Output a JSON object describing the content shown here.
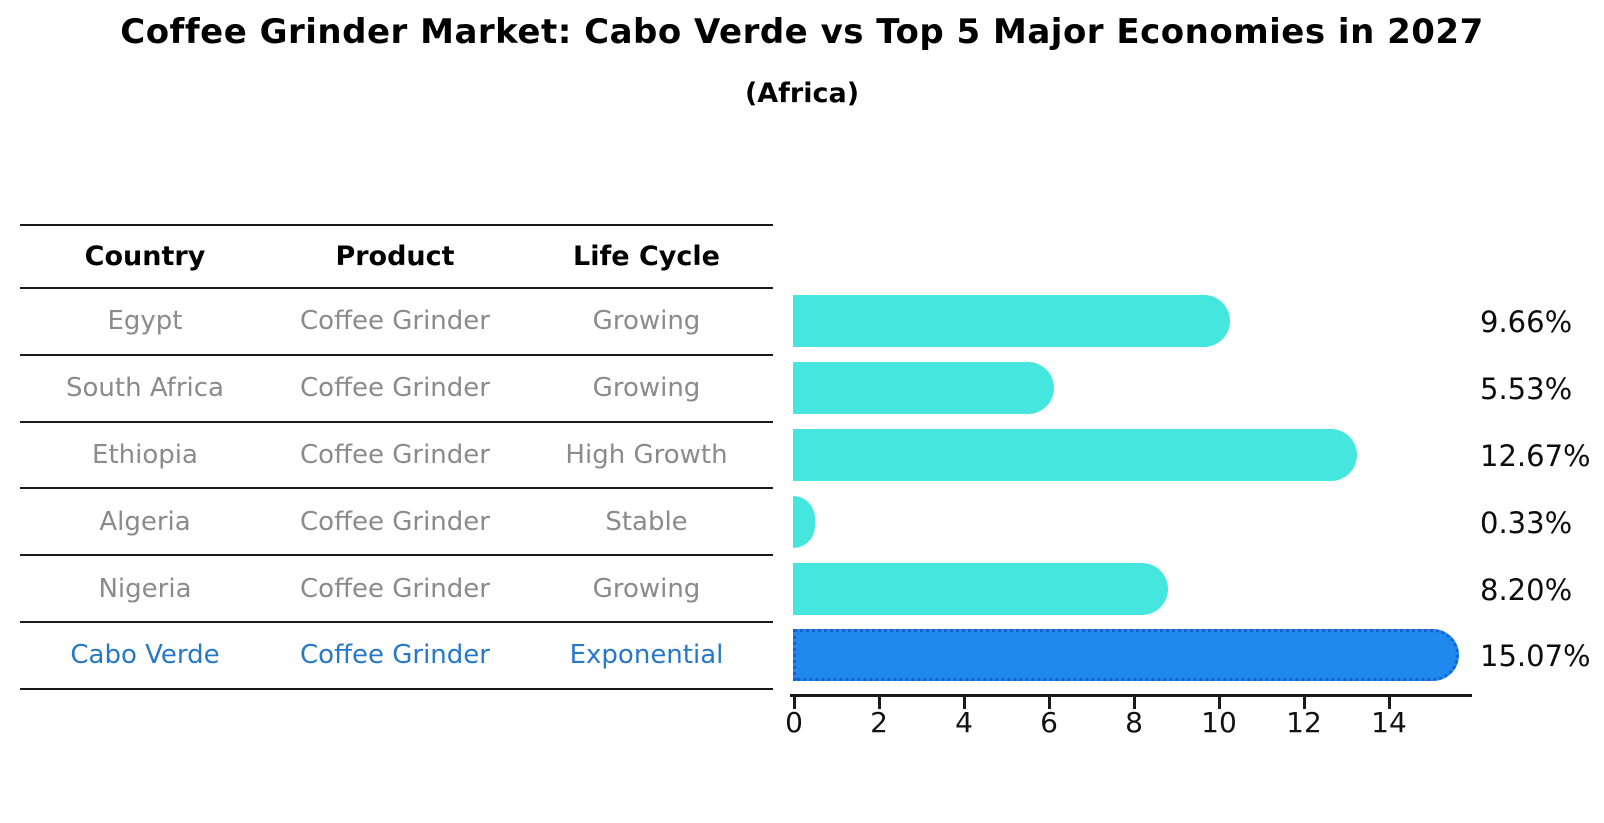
{
  "title": "Coffee Grinder Market: Cabo Verde vs Top 5 Major Economies in 2027",
  "subtitle": "(Africa)",
  "table": {
    "headers": {
      "country": "Country",
      "product": "Product",
      "life_cycle": "Life Cycle"
    },
    "rows": [
      {
        "country": "Egypt",
        "product": "Coffee Grinder",
        "life_cycle": "Growing",
        "highlight": false
      },
      {
        "country": "South Africa",
        "product": "Coffee Grinder",
        "life_cycle": "Growing",
        "highlight": false
      },
      {
        "country": "Ethiopia",
        "product": "Coffee Grinder",
        "life_cycle": "High Growth",
        "highlight": false
      },
      {
        "country": "Algeria",
        "product": "Coffee Grinder",
        "life_cycle": "Stable",
        "highlight": false
      },
      {
        "country": "Nigeria",
        "product": "Coffee Grinder",
        "life_cycle": "Growing",
        "highlight": false
      },
      {
        "country": "Cabo Verde",
        "product": "Coffee Grinder",
        "life_cycle": "Exponential",
        "highlight": true
      }
    ]
  },
  "chart_data": {
    "type": "bar",
    "orientation": "horizontal",
    "title": "Coffee Grinder Market: Cabo Verde vs Top 5 Major Economies in 2027 (Africa)",
    "categories": [
      "Egypt",
      "South Africa",
      "Ethiopia",
      "Algeria",
      "Nigeria",
      "Cabo Verde"
    ],
    "values": [
      9.66,
      5.53,
      12.67,
      0.33,
      8.2,
      15.07
    ],
    "value_labels": [
      "9.66%",
      "5.53%",
      "12.67%",
      "0.33%",
      "8.20%",
      "15.07%"
    ],
    "x_ticks": [
      "0",
      "2",
      "4",
      "6",
      "8",
      "10",
      "12",
      "14"
    ],
    "xlim": [
      0,
      16
    ],
    "grid": false,
    "legend": "none",
    "bar_color": "#45e6de",
    "highlight_bar_color": "#2089f0",
    "highlight_edge_color": "#1663cf",
    "highlight_edge_style": "dotted",
    "highlight_index": 5
  },
  "colors": {
    "background": "#ffffff",
    "row_text": "#8b8b8b",
    "highlight_text": "#2878c8",
    "heading_text": "#000000",
    "line": "#1a1a1a"
  }
}
